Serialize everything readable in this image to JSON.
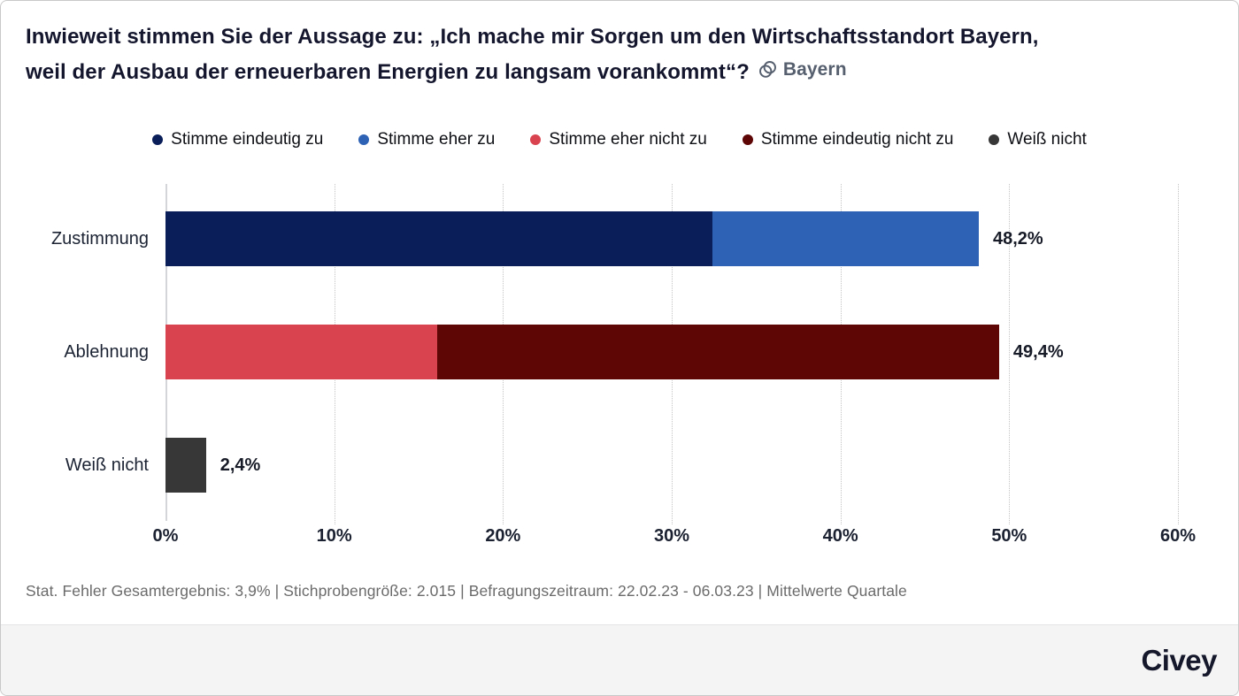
{
  "header": {
    "title_line1": "Inwieweit stimmen Sie der Aussage zu: „Ich mache mir Sorgen um den Wirtschaftsstandort Bayern,",
    "title_line2": "weil der Ausbau der erneuerbaren Energien zu langsam vorankommt“?",
    "region": "Bayern",
    "region_icon": "overlapping-circles-icon"
  },
  "chart_data": {
    "type": "bar",
    "orientation": "horizontal",
    "stacked": true,
    "categories": [
      "Zustimmung",
      "Ablehnung",
      "Weiß nicht"
    ],
    "series": [
      {
        "name": "Stimme eindeutig zu",
        "color": "#0a1e5a",
        "values": [
          32.4,
          0,
          0
        ]
      },
      {
        "name": "Stimme eher zu",
        "color": "#2d62b5",
        "values": [
          15.8,
          0,
          0
        ]
      },
      {
        "name": "Stimme eher nicht zu",
        "color": "#d9434f",
        "values": [
          0,
          16.1,
          0
        ]
      },
      {
        "name": "Stimme eindeutig nicht zu",
        "color": "#5e0606",
        "values": [
          0,
          33.3,
          0
        ]
      },
      {
        "name": "Weiß nicht",
        "color": "#373737",
        "values": [
          0,
          0,
          2.4
        ]
      }
    ],
    "totals": [
      48.2,
      49.4,
      2.4
    ],
    "totals_labels": [
      "48,2%",
      "49,4%",
      "2,4%"
    ],
    "xlim": [
      0,
      60
    ],
    "x_tick_values": [
      0,
      10,
      20,
      30,
      40,
      50,
      60
    ],
    "x_tick_labels": [
      "0%",
      "10%",
      "20%",
      "30%",
      "40%",
      "50%",
      "60%"
    ],
    "grid": "dotted-vertical",
    "legend_position": "top"
  },
  "footer": {
    "stats": "Stat. Fehler Gesamtergebnis: 3,9% | Stichprobengröße: 2.015 | Befragungszeitraum: 22.02.23 - 06.03.23 | Mittelwerte Quartale",
    "brand": "Civey"
  }
}
